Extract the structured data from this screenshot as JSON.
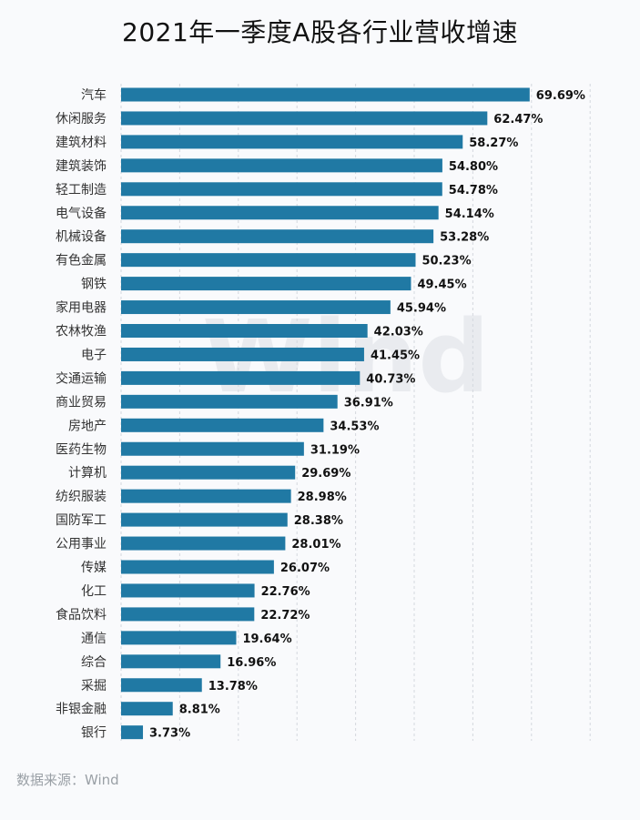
{
  "title": "2021年一季度A股各行业营收增速",
  "source_note": "数据来源：Wind",
  "watermark": "Wind",
  "chart_data": {
    "type": "bar",
    "orientation": "horizontal",
    "title": "2021年一季度A股各行业营收增速",
    "xlabel": "",
    "ylabel": "",
    "xlim": [
      0,
      80
    ],
    "grid": true,
    "bar_color": "#2079a4",
    "categories": [
      "汽车",
      "休闲服务",
      "建筑材料",
      "建筑装饰",
      "轻工制造",
      "电气设备",
      "机械设备",
      "有色金属",
      "钢铁",
      "家用电器",
      "农林牧渔",
      "电子",
      "交通运输",
      "商业贸易",
      "房地产",
      "医药生物",
      "计算机",
      "纺织服装",
      "国防军工",
      "公用事业",
      "传媒",
      "化工",
      "食品饮料",
      "通信",
      "综合",
      "采掘",
      "非银金融",
      "银行"
    ],
    "values": [
      69.69,
      62.47,
      58.27,
      54.8,
      54.78,
      54.14,
      53.28,
      50.23,
      49.45,
      45.94,
      42.03,
      41.45,
      40.73,
      36.91,
      34.53,
      31.19,
      29.69,
      28.98,
      28.38,
      28.01,
      26.07,
      22.76,
      22.72,
      19.64,
      16.96,
      13.78,
      8.81,
      3.73
    ],
    "value_labels": [
      "69.69%",
      "62.47%",
      "58.27%",
      "54.80%",
      "54.78%",
      "54.14%",
      "53.28%",
      "50.23%",
      "49.45%",
      "45.94%",
      "42.03%",
      "41.45%",
      "40.73%",
      "36.91%",
      "34.53%",
      "31.19%",
      "29.69%",
      "28.98%",
      "28.38%",
      "28.01%",
      "26.07%",
      "22.76%",
      "22.72%",
      "19.64%",
      "16.96%",
      "13.78%",
      "8.81%",
      "3.73%"
    ]
  }
}
